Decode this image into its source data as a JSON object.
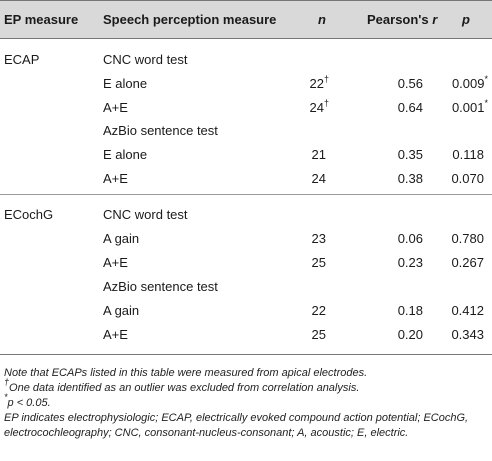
{
  "header": {
    "col_ep": "EP measure",
    "col_speech": "Speech perception measure",
    "col_n": "n",
    "col_r_prefix": "Pearson's ",
    "col_r_var": "r",
    "col_p": "p"
  },
  "rows": [
    {
      "ep": "ECAP",
      "speech": "CNC word test",
      "n": "",
      "n_mark": "",
      "r": "",
      "p": "",
      "p_mark": ""
    },
    {
      "ep": "",
      "speech": "E alone",
      "n": "22",
      "n_mark": "†",
      "r": "0.56",
      "p": "0.009",
      "p_mark": "*"
    },
    {
      "ep": "",
      "speech": "A+E",
      "n": "24",
      "n_mark": "†",
      "r": "0.64",
      "p": "0.001",
      "p_mark": "*"
    },
    {
      "ep": "",
      "speech": "AzBio sentence test",
      "n": "",
      "n_mark": "",
      "r": "",
      "p": "",
      "p_mark": ""
    },
    {
      "ep": "",
      "speech": "E alone",
      "n": "21",
      "n_mark": "",
      "r": "0.35",
      "p": "0.118",
      "p_mark": ""
    },
    {
      "ep": "",
      "speech": "A+E",
      "n": "24",
      "n_mark": "",
      "r": "0.38",
      "p": "0.070",
      "p_mark": ""
    },
    {
      "ep": "ECochG",
      "speech": "CNC word test",
      "n": "",
      "n_mark": "",
      "r": "",
      "p": "",
      "p_mark": ""
    },
    {
      "ep": "",
      "speech": "A gain",
      "n": "23",
      "n_mark": "",
      "r": "0.06",
      "p": "0.780",
      "p_mark": ""
    },
    {
      "ep": "",
      "speech": "A+E",
      "n": "25",
      "n_mark": "",
      "r": "0.23",
      "p": "0.267",
      "p_mark": ""
    },
    {
      "ep": "",
      "speech": "AzBio sentence test",
      "n": "",
      "n_mark": "",
      "r": "",
      "p": "",
      "p_mark": ""
    },
    {
      "ep": "",
      "speech": "A gain",
      "n": "22",
      "n_mark": "",
      "r": "0.18",
      "p": "0.412",
      "p_mark": ""
    },
    {
      "ep": "",
      "speech": "A+E",
      "n": "25",
      "n_mark": "",
      "r": "0.20",
      "p": "0.343",
      "p_mark": ""
    }
  ],
  "notes": {
    "line1": "Note that ECAPs listed in this table were measured from apical electrodes.",
    "line2_mark": "†",
    "line2": "One data identified as an outlier was excluded from correlation analysis.",
    "line3_mark": "*",
    "line3": "p < 0.05.",
    "line4": "EP indicates electrophysiologic; ECAP, electrically evoked compound action potential; ECochG, electrocochleography; CNC, consonant-nucleus-consonant; A, acoustic; E, electric."
  }
}
